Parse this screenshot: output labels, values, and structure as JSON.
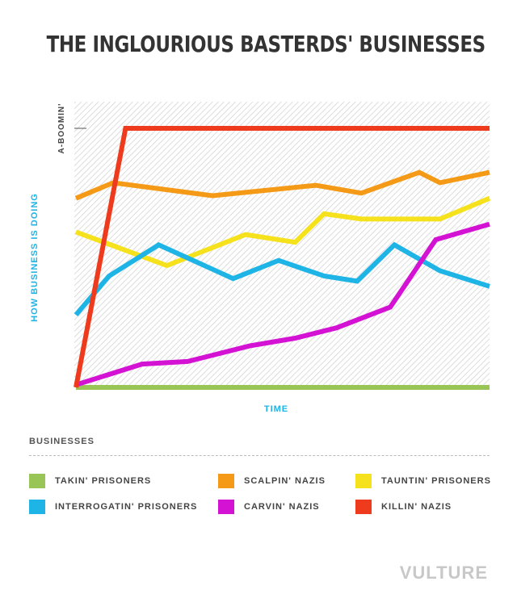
{
  "title": "THE INGLOURIOUS BASTERDS' BUSINESSES",
  "legend_header": "BUSINESSES",
  "brand": "VULTURE",
  "chart_data": {
    "type": "line",
    "title": "THE INGLOURIOUS BASTERDS' BUSINESSES",
    "xlabel": "TIME",
    "ylabel": "HOW BUSINESS IS DOING",
    "ylim": [
      0,
      100
    ],
    "xlim": [
      0,
      100
    ],
    "y_tick_labels": [
      {
        "value": 100,
        "label": "A-BOOMIN'"
      }
    ],
    "grid": false,
    "background": "diagonal hatch",
    "legend_position": "bottom",
    "series": [
      {
        "name": "TAKIN' PRISONERS",
        "color": "#99c456",
        "x": [
          0,
          100
        ],
        "y": [
          0,
          0
        ]
      },
      {
        "name": "SCALPIN' NAZIS",
        "color": "#f59a16",
        "x": [
          0,
          9,
          33,
          58,
          69,
          83,
          88,
          100
        ],
        "y": [
          73,
          79,
          74,
          78,
          75,
          83,
          79,
          83
        ]
      },
      {
        "name": "TAUNTIN' PRISONERS",
        "color": "#f5e11c",
        "x": [
          0,
          22,
          41,
          53,
          60,
          69,
          88,
          100
        ],
        "y": [
          60,
          47,
          59,
          56,
          67,
          65,
          65,
          73
        ]
      },
      {
        "name": "INTERROGATIN' PRISONERS",
        "color": "#1fb4e6",
        "x": [
          0,
          8,
          20,
          38,
          49,
          60,
          68,
          77,
          88,
          100
        ],
        "y": [
          28,
          43,
          55,
          42,
          49,
          43,
          41,
          55,
          45,
          39
        ]
      },
      {
        "name": "CARVIN' NAZIS",
        "color": "#d412d4",
        "x": [
          0,
          16,
          27,
          42,
          53,
          63,
          76,
          87,
          100
        ],
        "y": [
          1,
          9,
          10,
          16,
          19,
          23,
          31,
          57,
          63
        ]
      },
      {
        "name": "KILLIN' NAZIS",
        "color": "#ee3b1e",
        "x": [
          0,
          12,
          100
        ],
        "y": [
          0,
          100,
          100
        ]
      }
    ]
  },
  "legend": [
    {
      "label": "TAKIN' PRISONERS",
      "color": "#99c456"
    },
    {
      "label": "SCALPIN' NAZIS",
      "color": "#f59a16"
    },
    {
      "label": "TAUNTIN' PRISONERS",
      "color": "#f5e11c"
    },
    {
      "label": "INTERROGATIN' PRISONERS",
      "color": "#1fb4e6"
    },
    {
      "label": "CARVIN' NAZIS",
      "color": "#d412d4"
    },
    {
      "label": "KILLIN' NAZIS",
      "color": "#ee3b1e"
    }
  ]
}
